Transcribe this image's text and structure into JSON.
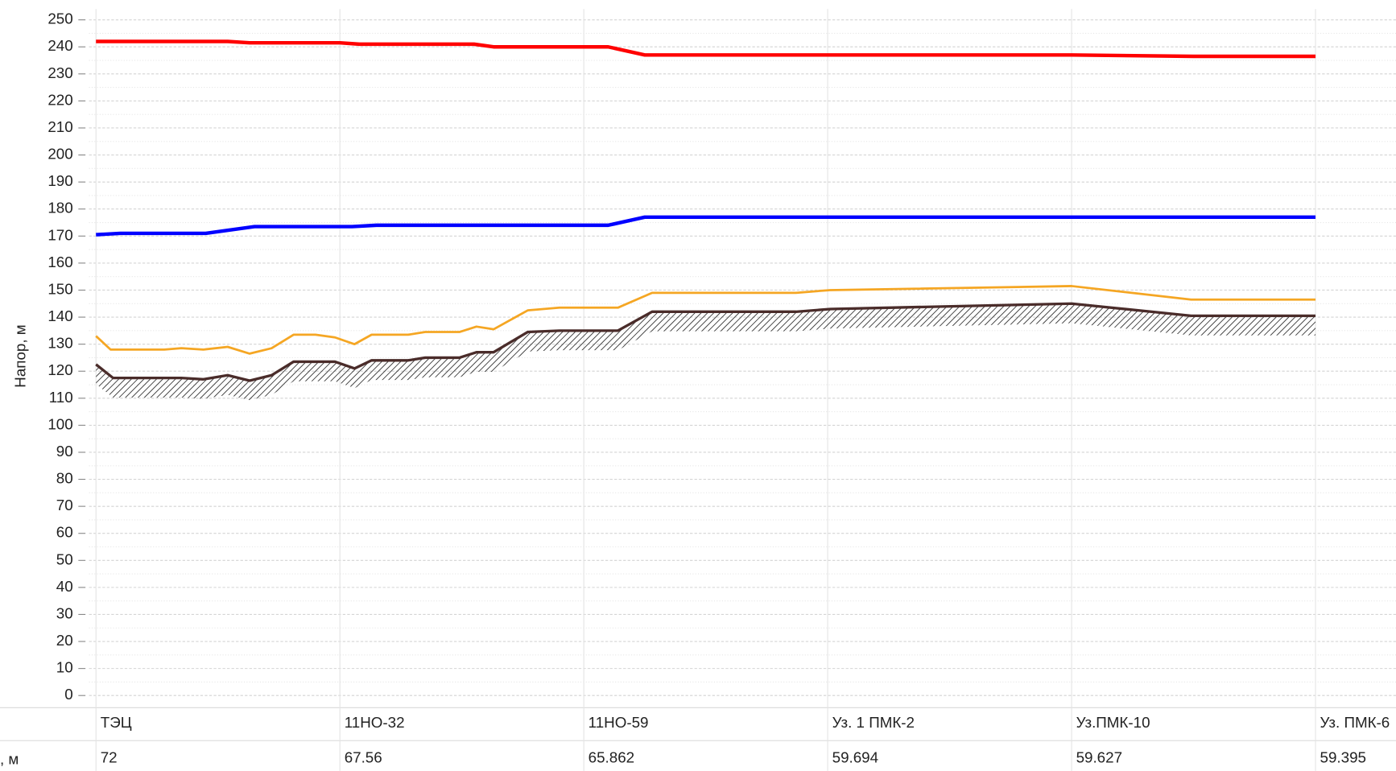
{
  "chart_data": {
    "type": "line",
    "y_label": "Напор, м",
    "row_label": ", м",
    "ylim": [
      -4.5,
      254
    ],
    "yticks": [
      0,
      10,
      20,
      30,
      40,
      50,
      60,
      70,
      80,
      90,
      100,
      110,
      120,
      130,
      140,
      150,
      160,
      170,
      180,
      190,
      200,
      210,
      220,
      230,
      240,
      250
    ],
    "xlim": [
      -0.65,
      53.3
    ],
    "xticks": [
      {
        "value": 0,
        "label": "ТЭЦ"
      },
      {
        "value": 10,
        "label": "11НО-32"
      },
      {
        "value": 20,
        "label": "11НО-59"
      },
      {
        "value": 30,
        "label": "Уз. 1 ПМК-2"
      },
      {
        "value": 40,
        "label": "Уз.ПМК-10"
      },
      {
        "value": 50,
        "label": "Уз. ПМК-6"
      }
    ],
    "elevations": [
      "72",
      "67.56",
      "65.862",
      "59.694",
      "59.627",
      "59.395"
    ],
    "grid": true,
    "series": [
      {
        "color": "#ff0000",
        "width": 4,
        "x": [
          0,
          5.4,
          6.3,
          10,
          10.8,
          15.5,
          16.3,
          21,
          22.5,
          40,
          45,
          50
        ],
        "values": [
          242,
          242,
          241.5,
          241.5,
          241,
          241,
          240,
          240,
          237,
          237,
          236.5,
          236.5
        ]
      },
      {
        "color": "#0000ff",
        "width": 4,
        "x": [
          0,
          1,
          4.5,
          6.5,
          10.5,
          11.5,
          21,
          22.5,
          50
        ],
        "values": [
          170.5,
          171,
          171,
          173.5,
          173.5,
          174,
          174,
          177,
          177
        ]
      },
      {
        "color": "#f5a623",
        "width": 2.5,
        "x": [
          0,
          0.6,
          2.8,
          3.5,
          4.4,
          5.4,
          6.3,
          7.2,
          8.1,
          9.0,
          9.8,
          10.6,
          11.3,
          12.8,
          13.5,
          14.9,
          15.6,
          16.3,
          17.7,
          19.0,
          21.4,
          22.8,
          28.7,
          30.1,
          40,
          44.9,
          50
        ],
        "values": [
          133,
          128,
          128,
          128.5,
          128,
          129,
          126.5,
          128.5,
          133.5,
          133.5,
          132.5,
          130,
          133.5,
          133.5,
          134.5,
          134.5,
          136.5,
          135.5,
          142.5,
          143.5,
          143.5,
          149,
          149,
          150,
          151.5,
          146.5,
          146.5
        ]
      },
      {
        "color": "#4a2c2a",
        "width": 3,
        "hatch": true,
        "x": [
          0,
          0.7,
          3.5,
          4.4,
          5.4,
          6.3,
          7.2,
          8.1,
          9.8,
          10.6,
          11.3,
          12.8,
          13.5,
          14.9,
          15.6,
          16.3,
          17.7,
          19.0,
          21.4,
          22.8,
          28.7,
          30.1,
          40,
          44.9,
          50
        ],
        "values": [
          122.5,
          117.5,
          117.5,
          117,
          118.5,
          116.5,
          118.5,
          123.5,
          123.5,
          121,
          124,
          124,
          125,
          125,
          127,
          127,
          134.5,
          135,
          135,
          142,
          142,
          143,
          145,
          140.5,
          140.5
        ]
      }
    ]
  }
}
